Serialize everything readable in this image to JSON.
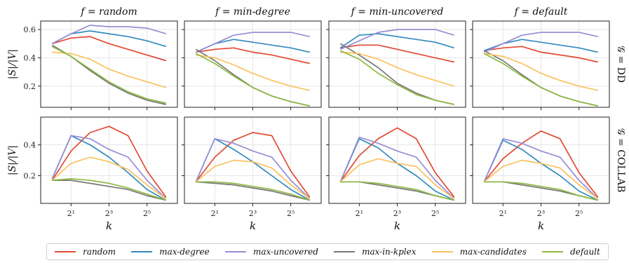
{
  "chart_data": {
    "type": "line",
    "x": [
      1,
      2,
      4,
      8,
      16,
      32,
      64
    ],
    "x_tick_labels": [
      "2¹",
      "2³",
      "2⁵"
    ],
    "x_tick_values": [
      2,
      8,
      32
    ],
    "xlabel": "k",
    "xscale": "log2",
    "grid": true,
    "legend_position": "bottom",
    "columns": [
      {
        "title": "f = random"
      },
      {
        "title": "f = min-degree"
      },
      {
        "title": "f = min-uncovered"
      },
      {
        "title": "f = default"
      }
    ],
    "rows": [
      {
        "label": "𝒢 = DD",
        "ylabel": "|S|/|V|",
        "ylim": [
          0.05,
          0.66
        ],
        "yticks": [
          0.2,
          0.4,
          0.6
        ],
        "ytick_labels": [
          "0.2",
          "0.4",
          "0.6"
        ]
      },
      {
        "label": "𝒢 = COLLAB",
        "ylabel": "|S|/|V|",
        "ylim": [
          0.02,
          0.58
        ],
        "yticks": [
          0.2,
          0.4
        ],
        "ytick_labels": [
          "0.2",
          "0.4"
        ]
      }
    ],
    "series_styles": [
      {
        "name": "random",
        "color": "#e24a33"
      },
      {
        "name": "max-degree",
        "color": "#348abd"
      },
      {
        "name": "max-uncovered",
        "color": "#988ed5"
      },
      {
        "name": "max-in-kplex",
        "color": "#777777"
      },
      {
        "name": "max-candidates",
        "color": "#fbc15e"
      },
      {
        "name": "default",
        "color": "#8eba42"
      }
    ],
    "panels": [
      [
        {
          "series": [
            [
              0.5,
              0.54,
              0.55,
              0.5,
              0.46,
              0.42,
              0.38
            ],
            [
              0.5,
              0.57,
              0.59,
              0.57,
              0.55,
              0.52,
              0.48
            ],
            [
              0.5,
              0.57,
              0.63,
              0.62,
              0.62,
              0.61,
              0.57
            ],
            [
              0.49,
              0.41,
              0.31,
              0.22,
              0.15,
              0.1,
              0.07
            ],
            [
              0.44,
              0.43,
              0.39,
              0.32,
              0.27,
              0.23,
              0.19
            ],
            [
              0.48,
              0.41,
              0.32,
              0.23,
              0.16,
              0.11,
              0.08
            ]
          ]
        },
        {
          "series": [
            [
              0.44,
              0.46,
              0.47,
              0.44,
              0.42,
              0.39,
              0.36
            ],
            [
              0.44,
              0.5,
              0.53,
              0.51,
              0.49,
              0.47,
              0.44
            ],
            [
              0.44,
              0.5,
              0.56,
              0.58,
              0.58,
              0.58,
              0.55
            ],
            [
              0.46,
              0.38,
              0.28,
              0.19,
              0.13,
              0.09,
              0.06
            ],
            [
              0.42,
              0.4,
              0.35,
              0.29,
              0.24,
              0.2,
              0.17
            ],
            [
              0.43,
              0.36,
              0.27,
              0.19,
              0.13,
              0.09,
              0.06
            ]
          ]
        },
        {
          "series": [
            [
              0.47,
              0.49,
              0.49,
              0.46,
              0.43,
              0.4,
              0.37
            ],
            [
              0.47,
              0.56,
              0.57,
              0.55,
              0.53,
              0.51,
              0.47
            ],
            [
              0.46,
              0.52,
              0.58,
              0.6,
              0.6,
              0.6,
              0.56
            ],
            [
              0.5,
              0.42,
              0.33,
              0.22,
              0.15,
              0.1,
              0.07
            ],
            [
              0.44,
              0.43,
              0.39,
              0.33,
              0.28,
              0.24,
              0.2
            ],
            [
              0.45,
              0.39,
              0.29,
              0.21,
              0.14,
              0.1,
              0.07
            ]
          ]
        },
        {
          "series": [
            [
              0.45,
              0.47,
              0.48,
              0.44,
              0.42,
              0.4,
              0.37
            ],
            [
              0.45,
              0.5,
              0.53,
              0.51,
              0.49,
              0.47,
              0.44
            ],
            [
              0.44,
              0.5,
              0.56,
              0.58,
              0.58,
              0.58,
              0.55
            ],
            [
              0.45,
              0.38,
              0.28,
              0.19,
              0.13,
              0.09,
              0.06
            ],
            [
              0.43,
              0.41,
              0.36,
              0.29,
              0.24,
              0.2,
              0.17
            ],
            [
              0.43,
              0.36,
              0.27,
              0.19,
              0.13,
              0.09,
              0.06
            ]
          ]
        }
      ],
      [
        {
          "series": [
            [
              0.17,
              0.36,
              0.48,
              0.52,
              0.46,
              0.23,
              0.06
            ],
            [
              0.18,
              0.46,
              0.4,
              0.32,
              0.22,
              0.11,
              0.04
            ],
            [
              0.18,
              0.46,
              0.44,
              0.37,
              0.32,
              0.17,
              0.05
            ],
            [
              0.17,
              0.17,
              0.15,
              0.13,
              0.11,
              0.07,
              0.04
            ],
            [
              0.17,
              0.28,
              0.32,
              0.29,
              0.24,
              0.14,
              0.05
            ],
            [
              0.17,
              0.18,
              0.17,
              0.15,
              0.12,
              0.08,
              0.04
            ]
          ]
        },
        {
          "series": [
            [
              0.16,
              0.32,
              0.43,
              0.48,
              0.46,
              0.23,
              0.06
            ],
            [
              0.16,
              0.44,
              0.37,
              0.29,
              0.2,
              0.11,
              0.04
            ],
            [
              0.16,
              0.44,
              0.41,
              0.36,
              0.32,
              0.17,
              0.05
            ],
            [
              0.16,
              0.15,
              0.14,
              0.12,
              0.1,
              0.07,
              0.04
            ],
            [
              0.16,
              0.26,
              0.3,
              0.29,
              0.25,
              0.14,
              0.05
            ],
            [
              0.16,
              0.16,
              0.15,
              0.13,
              0.11,
              0.08,
              0.04
            ]
          ]
        },
        {
          "series": [
            [
              0.16,
              0.33,
              0.44,
              0.51,
              0.44,
              0.22,
              0.06
            ],
            [
              0.16,
              0.44,
              0.38,
              0.28,
              0.2,
              0.1,
              0.04
            ],
            [
              0.16,
              0.45,
              0.41,
              0.36,
              0.32,
              0.17,
              0.05
            ],
            [
              0.16,
              0.16,
              0.14,
              0.12,
              0.1,
              0.07,
              0.04
            ],
            [
              0.16,
              0.27,
              0.31,
              0.28,
              0.26,
              0.14,
              0.05
            ],
            [
              0.16,
              0.16,
              0.15,
              0.13,
              0.11,
              0.07,
              0.04
            ]
          ]
        },
        {
          "series": [
            [
              0.16,
              0.31,
              0.41,
              0.49,
              0.44,
              0.22,
              0.06
            ],
            [
              0.16,
              0.43,
              0.37,
              0.28,
              0.2,
              0.1,
              0.04
            ],
            [
              0.16,
              0.44,
              0.41,
              0.36,
              0.32,
              0.17,
              0.05
            ],
            [
              0.16,
              0.16,
              0.14,
              0.12,
              0.1,
              0.07,
              0.04
            ],
            [
              0.16,
              0.26,
              0.3,
              0.28,
              0.25,
              0.14,
              0.05
            ],
            [
              0.16,
              0.16,
              0.15,
              0.13,
              0.11,
              0.07,
              0.04
            ]
          ]
        }
      ]
    ]
  }
}
